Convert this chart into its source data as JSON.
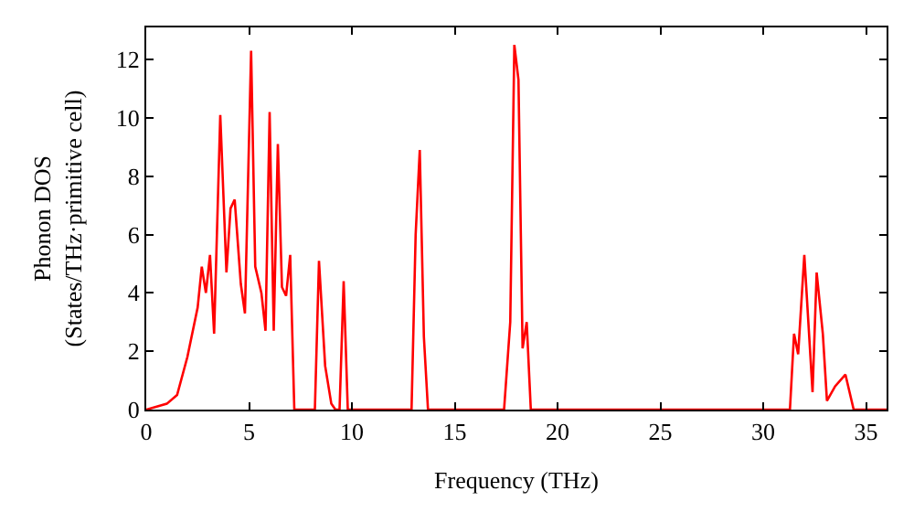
{
  "chart_data": {
    "type": "line",
    "xlabel": "Frequency (THz)",
    "ylabel": "Phonon DOS\n(States/THz·primitive cell)",
    "xlim": [
      0,
      36
    ],
    "ylim": [
      0,
      13.1
    ],
    "xticks": [
      0,
      5,
      10,
      15,
      20,
      25,
      30,
      35
    ],
    "yticks": [
      0,
      2,
      4,
      6,
      8,
      10,
      12
    ],
    "marker": "none",
    "line_style": "solid",
    "series": [
      {
        "color": "#ff0000",
        "x": [
          0,
          1,
          1.5,
          2,
          2.5,
          2.7,
          2.9,
          3.1,
          3.3,
          3.6,
          3.9,
          4.1,
          4.3,
          4.6,
          4.8,
          5.1,
          5.3,
          5.6,
          5.8,
          6.0,
          6.2,
          6.4,
          6.6,
          6.8,
          7.0,
          7.2,
          8.2,
          8.4,
          8.7,
          9.0,
          9.2,
          9.4,
          9.6,
          9.8,
          12.9,
          13.1,
          13.3,
          13.5,
          13.7,
          17.4,
          17.7,
          17.9,
          18.1,
          18.3,
          18.5,
          18.7,
          31.3,
          31.5,
          31.7,
          32.0,
          32.4,
          32.6,
          32.9,
          33.1,
          33.5,
          34.0,
          34.4,
          36
        ],
        "values": [
          0,
          0.2,
          0.5,
          1.8,
          3.5,
          4.9,
          4.0,
          5.3,
          2.6,
          10.1,
          4.7,
          6.9,
          7.2,
          4.3,
          3.3,
          12.3,
          4.9,
          4.0,
          2.7,
          10.2,
          2.7,
          9.1,
          4.2,
          3.9,
          5.3,
          0,
          0,
          5.1,
          1.5,
          0.2,
          0,
          0,
          4.4,
          0,
          0,
          6,
          8.9,
          2.5,
          0,
          0,
          3,
          12.5,
          11.3,
          2.1,
          3.0,
          0,
          0,
          2.6,
          1.9,
          5.3,
          0.6,
          4.7,
          2.6,
          0.3,
          0.8,
          1.2,
          0,
          0
        ]
      }
    ]
  }
}
